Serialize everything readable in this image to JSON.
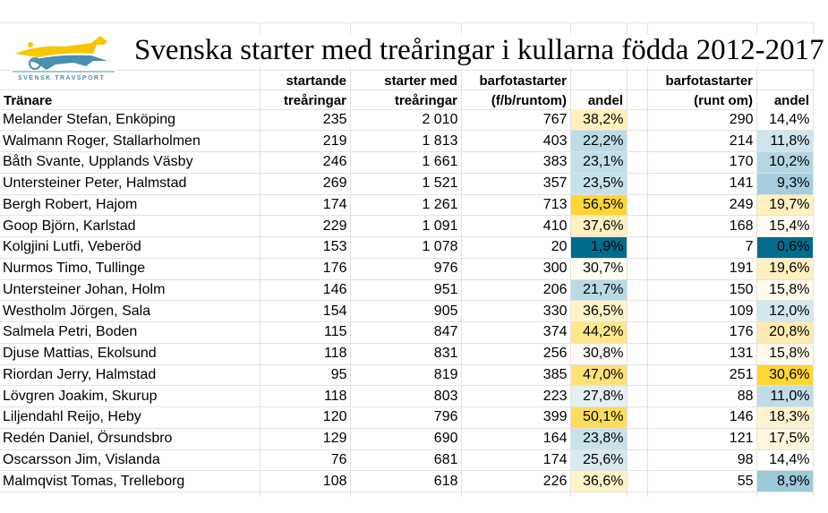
{
  "title": "Svenska starter med treåringar i kullarna födda 2012-2017",
  "logo_text": "SVENSK TRAVSPORT",
  "headers": {
    "trainer": "Tränare",
    "starting_1": "startande",
    "starting_2": "treåringar",
    "starts_1": "starter med",
    "starts_2": "treåringar",
    "barefoot_1": "barfotastarter",
    "barefoot_2": "(f/b/runtom)",
    "share": "andel",
    "barefoot_all_1": "barfotastarter",
    "barefoot_all_2": "(runt om)",
    "share_all": "andel"
  },
  "rows": [
    {
      "trainer": "Melander Stefan, Enköping",
      "starting": "235",
      "starts": "2 010",
      "barefoot": "767",
      "share": "38,2%",
      "share_color": "#fff0bd",
      "barefoot_all": "290",
      "share_all": "14,4%",
      "share_all_color": "#ffffff"
    },
    {
      "trainer": "Walmann Roger, Stallarholmen",
      "starting": "219",
      "starts": "1 813",
      "barefoot": "403",
      "share": "22,2%",
      "share_color": "#bcdbe6",
      "barefoot_all": "214",
      "share_all": "11,8%",
      "share_all_color": "#cfe4ec"
    },
    {
      "trainer": "Båth Svante, Upplands Väsby",
      "starting": "246",
      "starts": "1 661",
      "barefoot": "383",
      "share": "23,1%",
      "share_color": "#c4dfe9",
      "barefoot_all": "170",
      "share_all": "10,2%",
      "share_all_color": "#b4d6e2"
    },
    {
      "trainer": "Untersteiner Peter, Halmstad",
      "starting": "269",
      "starts": "1 521",
      "barefoot": "357",
      "share": "23,5%",
      "share_color": "#c7e1ea",
      "barefoot_all": "141",
      "share_all": "9,3%",
      "share_all_color": "#a4cedc"
    },
    {
      "trainer": "Bergh Robert, Hajom",
      "starting": "174",
      "starts": "1 261",
      "barefoot": "713",
      "share": "56,5%",
      "share_color": "#ffd632",
      "barefoot_all": "249",
      "share_all": "19,7%",
      "share_all_color": "#fff0c0"
    },
    {
      "trainer": "Goop Björn, Karlstad",
      "starting": "229",
      "starts": "1 091",
      "barefoot": "410",
      "share": "37,6%",
      "share_color": "#fff1c2",
      "barefoot_all": "168",
      "share_all": "15,4%",
      "share_all_color": "#fffcf3"
    },
    {
      "trainer": "Kolgjini Lutfi, Veberöd",
      "starting": "153",
      "starts": "1 078",
      "barefoot": "20",
      "share": "1,9%",
      "share_color": "#006c8e",
      "barefoot_all": "7",
      "share_all": "0,6%",
      "share_all_color": "#006c8e"
    },
    {
      "trainer": "Nurmos Timo, Tullinge",
      "starting": "176",
      "starts": "976",
      "barefoot": "300",
      "share": "30,7%",
      "share_color": "#fefcf5",
      "barefoot_all": "191",
      "share_all": "19,6%",
      "share_all_color": "#fff0c2"
    },
    {
      "trainer": "Untersteiner Johan, Holm",
      "starting": "146",
      "starts": "951",
      "barefoot": "206",
      "share": "21,7%",
      "share_color": "#b9d9e5",
      "barefoot_all": "150",
      "share_all": "15,8%",
      "share_all_color": "#fffaea"
    },
    {
      "trainer": "Westholm Jörgen, Sala",
      "starting": "154",
      "starts": "905",
      "barefoot": "330",
      "share": "36,5%",
      "share_color": "#fff3c9",
      "barefoot_all": "109",
      "share_all": "12,0%",
      "share_all_color": "#d4e7ee"
    },
    {
      "trainer": "Salmela Petri, Boden",
      "starting": "115",
      "starts": "847",
      "barefoot": "374",
      "share": "44,2%",
      "share_color": "#ffe78a",
      "barefoot_all": "176",
      "share_all": "20,8%",
      "share_all_color": "#ffebb0"
    },
    {
      "trainer": "Djuse Mattias, Ekolsund",
      "starting": "118",
      "starts": "831",
      "barefoot": "256",
      "share": "30,8%",
      "share_color": "#fefcf5",
      "barefoot_all": "131",
      "share_all": "15,8%",
      "share_all_color": "#fffaea"
    },
    {
      "trainer": "Riordan Jerry, Halmstad",
      "starting": "95",
      "starts": "819",
      "barefoot": "385",
      "share": "47,0%",
      "share_color": "#ffe277",
      "barefoot_all": "251",
      "share_all": "30,6%",
      "share_all_color": "#ffd632"
    },
    {
      "trainer": "Lövgren Joakim, Skurup",
      "starting": "118",
      "starts": "803",
      "barefoot": "223",
      "share": "27,8%",
      "share_color": "#e6f0f3",
      "barefoot_all": "88",
      "share_all": "11,0%",
      "share_all_color": "#c0dce7"
    },
    {
      "trainer": "Liljendahl Reijo, Heby",
      "starting": "120",
      "starts": "796",
      "barefoot": "399",
      "share": "50,1%",
      "share_color": "#ffdc5c",
      "barefoot_all": "146",
      "share_all": "18,3%",
      "share_all_color": "#fff3cf"
    },
    {
      "trainer": "Redén Daniel, Örsundsbro",
      "starting": "129",
      "starts": "690",
      "barefoot": "164",
      "share": "23,8%",
      "share_color": "#c9e2ea",
      "barefoot_all": "121",
      "share_all": "17,5%",
      "share_all_color": "#fff5d9"
    },
    {
      "trainer": "Oscarsson Jim, Vislanda",
      "starting": "76",
      "starts": "681",
      "barefoot": "174",
      "share": "25,6%",
      "share_color": "#d8e9ef",
      "barefoot_all": "98",
      "share_all": "14,4%",
      "share_all_color": "#ffffff"
    },
    {
      "trainer": "Malmqvist Tomas, Trelleborg",
      "starting": "108",
      "starts": "618",
      "barefoot": "226",
      "share": "36,6%",
      "share_color": "#fff3c8",
      "barefoot_all": "55",
      "share_all": "8,9%",
      "share_all_color": "#9ccad9"
    }
  ]
}
